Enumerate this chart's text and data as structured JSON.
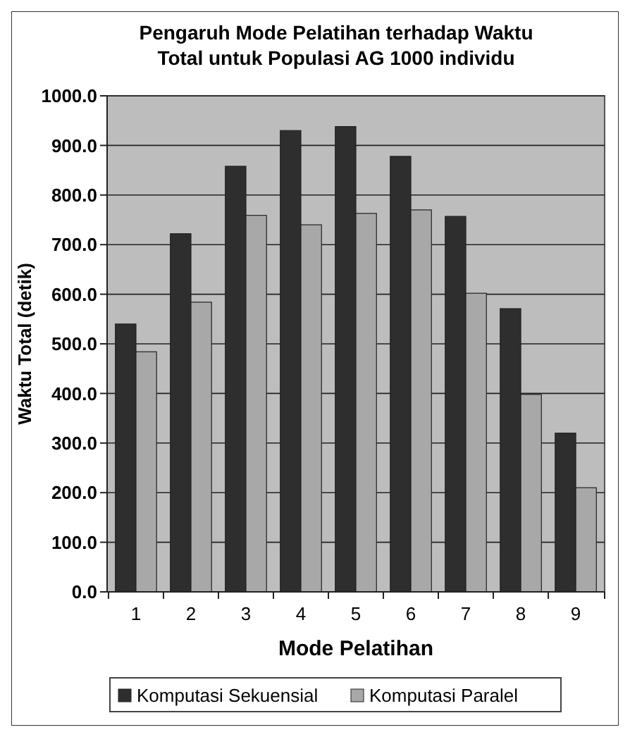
{
  "chart_data": {
    "type": "bar",
    "title": "Pengaruh Mode Pelatihan terhadap Waktu Total untuk Populasi AG 1000 individu",
    "xlabel": "Mode Pelatihan",
    "ylabel": "Waktu Total (detik)",
    "categories": [
      "1",
      "2",
      "3",
      "4",
      "5",
      "6",
      "7",
      "8",
      "9"
    ],
    "series": [
      {
        "name": "Komputasi Sekuensial",
        "color": "#2e2e2e",
        "values": [
          540,
          722,
          858,
          930,
          938,
          878,
          757,
          571,
          320
        ]
      },
      {
        "name": "Komputasi Paralel",
        "color": "#a8a8a8",
        "values": [
          484,
          584,
          759,
          740,
          763,
          770,
          602,
          398,
          210
        ]
      }
    ],
    "ylim": [
      0,
      1000
    ],
    "yticks": [
      {
        "value": 0,
        "label": "0.0"
      },
      {
        "value": 100,
        "label": "100.0"
      },
      {
        "value": 200,
        "label": "200.0"
      },
      {
        "value": 300,
        "label": "300.0"
      },
      {
        "value": 400,
        "label": "400.0"
      },
      {
        "value": 500,
        "label": "500.0"
      },
      {
        "value": 600,
        "label": "600.0"
      },
      {
        "value": 700,
        "label": "700.0"
      },
      {
        "value": 800,
        "label": "800.0"
      },
      {
        "value": 900,
        "label": "900.0"
      },
      {
        "value": 1000,
        "label": "1000.0"
      }
    ],
    "grid": "y",
    "legend": "bottom"
  }
}
